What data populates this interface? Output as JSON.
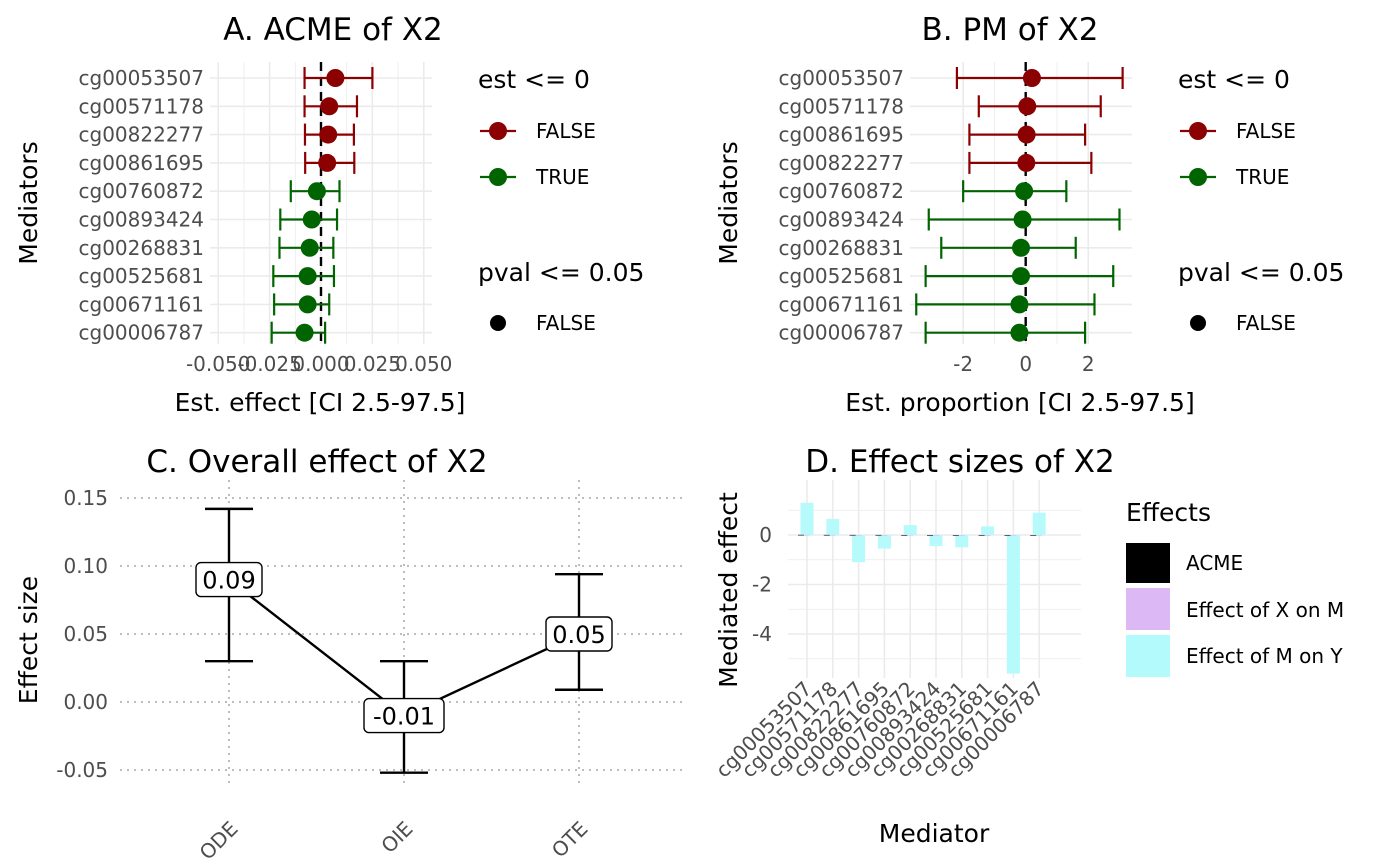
{
  "colors": {
    "est_false": "#8b0000",
    "est_true": "#006400",
    "accent": "#000000",
    "acme": "#000000",
    "x_on_m": "#dcb8f5",
    "m_on_y": "#b3fafc"
  },
  "chart_data": [
    {
      "id": "A",
      "type": "scatter",
      "title": "A. ACME of X2",
      "xlabel": "Est. effect [CI 2.5-97.5]",
      "ylabel": "Mediators",
      "xticks": [
        "-0.050",
        "-0.025",
        "0.000",
        "0.025",
        "0.050"
      ],
      "xtick_values": [
        -0.05,
        -0.025,
        0.0,
        0.025,
        0.05
      ],
      "xlim": [
        -0.054,
        0.054
      ],
      "reference_line": 0,
      "categories": [
        "cg00053507",
        "cg00571178",
        "cg00822277",
        "cg00861695",
        "cg00760872",
        "cg00893424",
        "cg00268831",
        "cg00525681",
        "cg00671161",
        "cg00006787"
      ],
      "estimate": [
        0.007,
        0.004,
        0.0035,
        0.003,
        -0.002,
        -0.0045,
        -0.0055,
        -0.0065,
        -0.0065,
        -0.008
      ],
      "ci_low": [
        -0.008,
        -0.008,
        -0.0078,
        -0.0077,
        -0.0147,
        -0.0198,
        -0.0202,
        -0.0232,
        -0.0228,
        -0.024
      ],
      "ci_high": [
        0.025,
        0.0175,
        0.016,
        0.0162,
        0.009,
        0.0078,
        0.006,
        0.0063,
        0.004,
        0.002
      ],
      "est_le_0": [
        false,
        false,
        false,
        false,
        true,
        true,
        true,
        true,
        true,
        true
      ],
      "grid": true
    },
    {
      "id": "B",
      "type": "scatter",
      "title": "B. PM of X2",
      "xlabel": "Est. proportion [CI 2.5-97.5]",
      "ylabel": "Mediators",
      "xticks": [
        "-2",
        "0",
        "2"
      ],
      "xtick_values": [
        -2,
        0,
        2
      ],
      "xlim": [
        -3.7,
        3.4
      ],
      "reference_line": 0,
      "categories": [
        "cg00053507",
        "cg00571178",
        "cg00861695",
        "cg00822277",
        "cg00760872",
        "cg00893424",
        "cg00268831",
        "cg00525681",
        "cg00671161",
        "cg00006787"
      ],
      "estimate": [
        0.2,
        0.05,
        0.03,
        0.02,
        -0.05,
        -0.1,
        -0.15,
        -0.15,
        -0.2,
        -0.2
      ],
      "ci_low": [
        -2.2,
        -1.5,
        -1.8,
        -1.8,
        -2.0,
        -3.1,
        -2.7,
        -3.2,
        -3.5,
        -3.2
      ],
      "ci_high": [
        3.1,
        2.4,
        1.9,
        2.1,
        1.3,
        3.0,
        1.6,
        2.8,
        2.2,
        1.9
      ],
      "est_le_0": [
        false,
        false,
        false,
        false,
        true,
        true,
        true,
        true,
        true,
        true
      ],
      "grid": true
    },
    {
      "id": "C",
      "type": "line",
      "title": "C. Overall effect of X2",
      "xlabel": "",
      "ylabel": "Effect size",
      "categories": [
        "ODE",
        "OIE",
        "OTE"
      ],
      "values": [
        0.09,
        -0.01,
        0.05
      ],
      "labels": [
        "0.09",
        "-0.01",
        "0.05"
      ],
      "ci_low": [
        0.03,
        -0.052,
        0.009
      ],
      "ci_high": [
        0.142,
        0.03,
        0.094
      ],
      "yticks": [
        "-0.05",
        "0.00",
        "0.05",
        "0.10",
        "0.15"
      ],
      "ytick_values": [
        -0.05,
        0.0,
        0.05,
        0.1,
        0.15
      ],
      "ylim": [
        -0.06,
        0.16
      ],
      "grid": true
    },
    {
      "id": "D",
      "type": "bar",
      "title": "D. Effect sizes of X2",
      "xlabel": "Mediator",
      "ylabel": "Mediated effect",
      "categories": [
        "cg00053507",
        "cg00571178",
        "cg00822277",
        "cg00861695",
        "cg00760872",
        "cg00893424",
        "cg00268831",
        "cg00525681",
        "cg00671161",
        "cg00006787"
      ],
      "series": [
        {
          "name": "ACME",
          "values": [
            0.007,
            0.004,
            0.0035,
            0.003,
            -0.002,
            -0.0045,
            -0.0055,
            -0.0065,
            -0.0065,
            -0.008
          ]
        },
        {
          "name": "Effect of X on M",
          "values": [
            0.006,
            0.005,
            -0.004,
            -0.002,
            0.004,
            -0.002,
            -0.002,
            -0.03,
            0.001,
            0.001
          ]
        },
        {
          "name": "Effect of M on Y",
          "values": [
            1.3,
            0.65,
            -1.1,
            -0.55,
            0.4,
            -0.45,
            -0.5,
            0.35,
            -5.6,
            0.9
          ]
        }
      ],
      "yticks": [
        "-4",
        "-2",
        "0"
      ],
      "ytick_values": [
        -4,
        -2,
        0
      ],
      "ylim": [
        -5.9,
        1.7
      ],
      "grid": true
    }
  ],
  "legend_ab": {
    "est_title": "est <= 0",
    "est_items": [
      "FALSE",
      "TRUE"
    ],
    "pval_title": "pval <= 0.05",
    "pval_items": [
      "FALSE"
    ]
  },
  "legend_d": {
    "title": "Effects",
    "items": [
      "ACME",
      "Effect of X on M",
      "Effect of M on Y"
    ]
  }
}
